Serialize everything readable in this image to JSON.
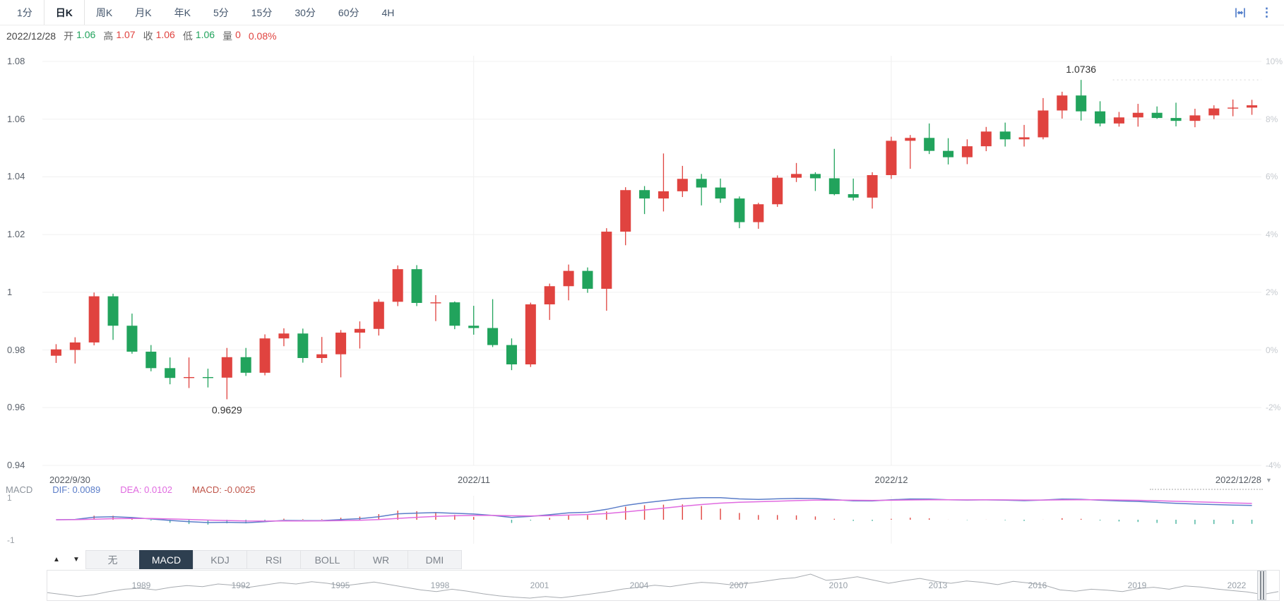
{
  "topbar": {
    "tabs": [
      {
        "label": "1分"
      },
      {
        "label": "日K"
      },
      {
        "label": "周K"
      },
      {
        "label": "月K"
      },
      {
        "label": "年K"
      },
      {
        "label": "5分"
      },
      {
        "label": "15分"
      },
      {
        "label": "30分"
      },
      {
        "label": "60分"
      },
      {
        "label": "4H"
      }
    ],
    "kebab_glyph": "⋮"
  },
  "quote": {
    "date": "2022/12/28",
    "open_label": "开",
    "open": "1.06",
    "high_label": "高",
    "high": "1.07",
    "close_label": "收",
    "close": "1.06",
    "low_label": "低",
    "low": "1.06",
    "volume_label": "量",
    "volume": "0",
    "change": "0.08%"
  },
  "axis": {
    "price_ticks": [
      "1.08",
      "1.06",
      "1.04",
      "1.02",
      "1",
      "0.98",
      "0.96",
      "0.94"
    ],
    "percent_ticks": [
      "10%",
      "8%",
      "6%",
      "4%",
      "2%",
      "0%",
      "-2%",
      "-4%"
    ],
    "date_labels": [
      "2022/9/30",
      "2022/11",
      "2022/12",
      "2022/12/28"
    ],
    "macd_ticks": [
      "1",
      "-1"
    ]
  },
  "macd_header": {
    "name": "MACD",
    "dif": "DIF: 0.0089",
    "dea": "DEA: 0.0102",
    "macd": "MACD: -0.0025"
  },
  "indicators": {
    "up_glyph": "▲",
    "down_glyph": "▼",
    "items": [
      "无",
      "MACD",
      "KDJ",
      "RSI",
      "BOLL",
      "WR",
      "DMI"
    ],
    "selected": "MACD"
  },
  "navigator": {
    "years": [
      "1989",
      "1992",
      "1995",
      "1998",
      "2001",
      "2004",
      "2007",
      "2010",
      "2013",
      "2016",
      "2019",
      "2022"
    ],
    "values": [
      1.02,
      0.96,
      0.9,
      0.95,
      1.05,
      1.12,
      1.15,
      1.1,
      1.18,
      1.23,
      1.2,
      1.28,
      1.24,
      1.18,
      1.25,
      1.32,
      1.28,
      1.35,
      1.3,
      1.22,
      1.28,
      1.34,
      1.26,
      1.18,
      1.1,
      1.05,
      1.12,
      1.06,
      0.98,
      0.92,
      0.88,
      0.85,
      0.9,
      0.86,
      0.92,
      0.98,
      1.05,
      1.13,
      1.18,
      1.24,
      1.2,
      1.27,
      1.33,
      1.3,
      1.25,
      1.3,
      1.36,
      1.43,
      1.47,
      1.58,
      1.39,
      1.43,
      1.5,
      1.4,
      1.3,
      1.38,
      1.45,
      1.36,
      1.3,
      1.37,
      1.33,
      1.26,
      1.36,
      1.31,
      1.24,
      1.1,
      1.06,
      1.12,
      1.09,
      1.05,
      1.14,
      1.18,
      1.12,
      1.22,
      1.19,
      1.13,
      1.08,
      1.04,
      0.96,
      1.05
    ]
  },
  "ui": {
    "collapse_glyph": "▼"
  },
  "chart_data": {
    "type": "candlestick",
    "price_range": [
      0.94,
      1.08
    ],
    "percent_range": [
      "-4%",
      "10%"
    ],
    "annotations": {
      "high": "1.0736",
      "low": "0.9629"
    },
    "month_gridline_indices": [
      22,
      44
    ],
    "colors": {
      "up": "#e0433f",
      "down": "#21a35c",
      "grid": "#f0f0f0",
      "dif_line": "#5b7dc9",
      "dea_line": "#e06ae0",
      "hist_negative": "#45b39d"
    },
    "candles": [
      [
        "2022/09/30",
        0.978,
        0.982,
        0.9755,
        0.9802
      ],
      [
        "2022/10/03",
        0.98,
        0.9844,
        0.9753,
        0.9826
      ],
      [
        "2022/10/04",
        0.9826,
        0.9999,
        0.9816,
        0.9986
      ],
      [
        "2022/10/05",
        0.9986,
        0.9995,
        0.9835,
        0.9884
      ],
      [
        "2022/10/06",
        0.9884,
        0.9926,
        0.9787,
        0.9794
      ],
      [
        "2022/10/07",
        0.9794,
        0.9817,
        0.9726,
        0.9737
      ],
      [
        "2022/10/10",
        0.9737,
        0.9774,
        0.9681,
        0.9703
      ],
      [
        "2022/10/11",
        0.9703,
        0.9774,
        0.9668,
        0.9706
      ],
      [
        "2022/10/12",
        0.9706,
        0.9735,
        0.967,
        0.9704
      ],
      [
        "2022/10/13",
        0.9704,
        0.9807,
        0.9629,
        0.9775
      ],
      [
        "2022/10/14",
        0.9775,
        0.9807,
        0.971,
        0.9721
      ],
      [
        "2022/10/17",
        0.9721,
        0.9854,
        0.9712,
        0.984
      ],
      [
        "2022/10/18",
        0.984,
        0.9875,
        0.9813,
        0.9857
      ],
      [
        "2022/10/19",
        0.9857,
        0.9874,
        0.9756,
        0.9772
      ],
      [
        "2022/10/20",
        0.9772,
        0.9845,
        0.9755,
        0.9785
      ],
      [
        "2022/10/21",
        0.9785,
        0.9869,
        0.9705,
        0.986
      ],
      [
        "2022/10/24",
        0.986,
        0.9899,
        0.9805,
        0.9873
      ],
      [
        "2022/10/25",
        0.9873,
        0.9976,
        0.985,
        0.9967
      ],
      [
        "2022/10/26",
        0.9967,
        1.0093,
        0.9952,
        1.008
      ],
      [
        "2022/10/27",
        1.008,
        1.0094,
        0.9952,
        0.9963
      ],
      [
        "2022/10/28",
        0.9963,
        0.999,
        0.99,
        0.9965
      ],
      [
        "2022/10/31",
        0.9965,
        0.9968,
        0.9872,
        0.9884
      ],
      [
        "2022/11/01",
        0.9884,
        0.9953,
        0.9853,
        0.9876
      ],
      [
        "2022/11/02",
        0.9876,
        0.9976,
        0.981,
        0.9817
      ],
      [
        "2022/11/03",
        0.9817,
        0.984,
        0.973,
        0.975
      ],
      [
        "2022/11/04",
        0.975,
        0.9964,
        0.9741,
        0.9958
      ],
      [
        "2022/11/07",
        0.9958,
        1.003,
        0.9904,
        1.0021
      ],
      [
        "2022/11/08",
        1.0021,
        1.0096,
        0.9972,
        1.0074
      ],
      [
        "2022/11/09",
        1.0074,
        1.0086,
        0.9998,
        1.0012
      ],
      [
        "2022/11/10",
        1.0012,
        1.0222,
        0.9936,
        1.021
      ],
      [
        "2022/11/11",
        1.021,
        1.0364,
        1.0163,
        1.0354
      ],
      [
        "2022/11/14",
        1.0354,
        1.0368,
        1.0271,
        1.0325
      ],
      [
        "2022/11/15",
        1.0325,
        1.0481,
        1.028,
        1.035
      ],
      [
        "2022/11/16",
        1.035,
        1.0438,
        1.033,
        1.0393
      ],
      [
        "2022/11/17",
        1.0393,
        1.041,
        1.0301,
        1.0363
      ],
      [
        "2022/11/18",
        1.0363,
        1.0394,
        1.031,
        1.0325
      ],
      [
        "2022/11/21",
        1.0325,
        1.0332,
        1.0222,
        1.0243
      ],
      [
        "2022/11/22",
        1.0243,
        1.031,
        1.022,
        1.0305
      ],
      [
        "2022/11/23",
        1.0305,
        1.0405,
        1.0296,
        1.0397
      ],
      [
        "2022/11/24",
        1.0397,
        1.0448,
        1.0382,
        1.041
      ],
      [
        "2022/11/25",
        1.041,
        1.0416,
        1.0351,
        1.0395
      ],
      [
        "2022/11/28",
        1.0395,
        1.0497,
        1.0336,
        1.034
      ],
      [
        "2022/11/29",
        1.034,
        1.0394,
        1.0318,
        1.0328
      ],
      [
        "2022/11/30",
        1.0328,
        1.0416,
        1.029,
        1.0406
      ],
      [
        "2022/12/01",
        1.0406,
        1.0539,
        1.0393,
        1.0525
      ],
      [
        "2022/12/02",
        1.0525,
        1.0545,
        1.0428,
        1.0535
      ],
      [
        "2022/12/05",
        1.0535,
        1.0585,
        1.0479,
        1.049
      ],
      [
        "2022/12/06",
        1.049,
        1.0534,
        1.0443,
        1.0468
      ],
      [
        "2022/12/07",
        1.0468,
        1.053,
        1.0444,
        1.0506
      ],
      [
        "2022/12/08",
        1.0506,
        1.0573,
        1.0489,
        1.0557
      ],
      [
        "2022/12/09",
        1.0557,
        1.0588,
        1.0505,
        1.053
      ],
      [
        "2022/12/12",
        1.053,
        1.058,
        1.0505,
        1.0537
      ],
      [
        "2022/12/13",
        1.0537,
        1.0673,
        1.053,
        1.063
      ],
      [
        "2022/12/14",
        1.063,
        1.0695,
        1.0602,
        1.0682
      ],
      [
        "2022/12/15",
        1.0682,
        1.0736,
        1.0595,
        1.0627
      ],
      [
        "2022/12/16",
        1.0627,
        1.0662,
        1.0575,
        1.0585
      ],
      [
        "2022/12/19",
        1.0585,
        1.0625,
        1.0574,
        1.0606
      ],
      [
        "2022/12/20",
        1.0606,
        1.0653,
        1.0574,
        1.0622
      ],
      [
        "2022/12/21",
        1.0622,
        1.0644,
        1.0601,
        1.0604
      ],
      [
        "2022/12/22",
        1.0604,
        1.0657,
        1.0575,
        1.0594
      ],
      [
        "2022/12/23",
        1.0594,
        1.0636,
        1.0572,
        1.0613
      ],
      [
        "2022/12/26",
        1.0613,
        1.0648,
        1.06,
        1.0637
      ],
      [
        "2022/12/27",
        1.0637,
        1.0668,
        1.061,
        1.064
      ],
      [
        "2022/12/28",
        1.064,
        1.0667,
        1.0615,
        1.0648
      ]
    ]
  }
}
